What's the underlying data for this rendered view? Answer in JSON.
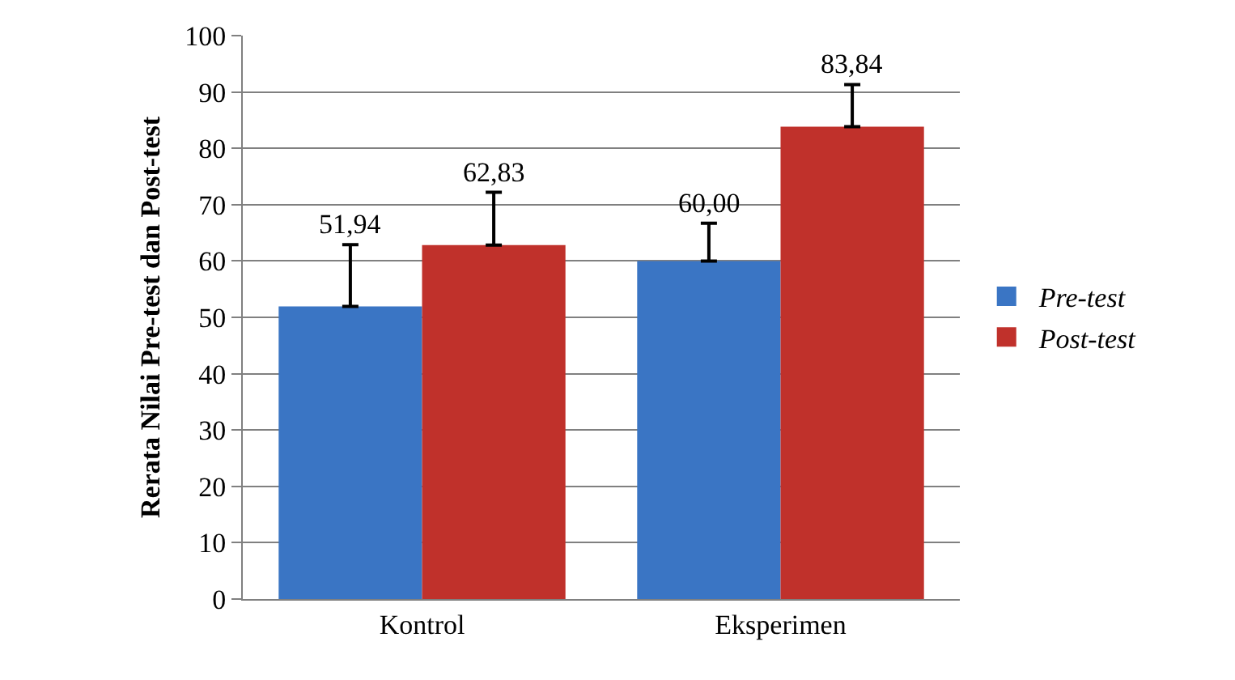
{
  "chart_data": {
    "type": "bar",
    "ylabel": "Rerata Nilai Pre-test dan Post-test",
    "categories": [
      "Kontrol",
      "Eksperimen"
    ],
    "series": [
      {
        "name": "Pre-test",
        "color": "#3a75c4",
        "values": [
          51.94,
          60.0
        ],
        "value_labels": [
          "51,94",
          "60,00"
        ],
        "errors": [
          [
            51.94,
            62.9
          ],
          [
            60.0,
            66.7
          ]
        ]
      },
      {
        "name": "Post-test",
        "color": "#c0312b",
        "values": [
          62.83,
          83.84
        ],
        "value_labels": [
          "62,83",
          "83,84"
        ],
        "errors": [
          [
            62.83,
            72.2
          ],
          [
            83.84,
            91.3
          ]
        ]
      }
    ],
    "ylim": [
      0,
      100
    ],
    "yticks": [
      0,
      10,
      20,
      30,
      40,
      50,
      60,
      70,
      80,
      90,
      100
    ],
    "grid": "y",
    "legend": "right"
  }
}
